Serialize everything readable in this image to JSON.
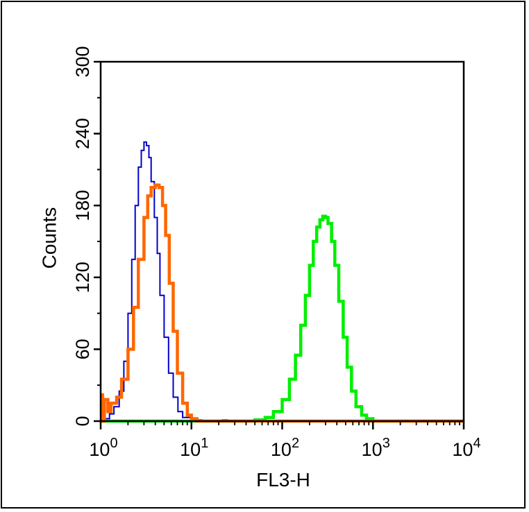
{
  "chart_data": {
    "type": "line",
    "xlabel": "FL3-H",
    "ylabel": "Counts",
    "x_scale": "log",
    "xlim": [
      1,
      10000
    ],
    "ylim": [
      0,
      300
    ],
    "x_ticks": [
      {
        "value": 1,
        "base": "10",
        "exp": "0"
      },
      {
        "value": 10,
        "base": "10",
        "exp": "1"
      },
      {
        "value": 100,
        "base": "10",
        "exp": "2"
      },
      {
        "value": 1000,
        "base": "10",
        "exp": "3"
      },
      {
        "value": 10000,
        "base": "10",
        "exp": "4"
      }
    ],
    "y_ticks": [
      "0",
      "60",
      "120",
      "180",
      "240",
      "300"
    ],
    "grid": false,
    "legend": "none",
    "series": [
      {
        "color": "#0000cc",
        "stroke": "thin",
        "x": [
          1.0,
          1.1,
          1.25,
          1.4,
          1.6,
          1.8,
          2.0,
          2.2,
          2.4,
          2.6,
          2.8,
          3.0,
          3.2,
          3.4,
          3.6,
          3.9,
          4.2,
          4.5,
          5.0,
          5.6,
          6.3,
          7.1,
          8.0,
          10.0,
          13.0,
          17.0,
          22.0,
          25.0,
          10000
        ],
        "y": [
          0,
          2,
          6,
          12,
          25,
          50,
          90,
          135,
          180,
          212,
          226,
          233,
          230,
          220,
          200,
          170,
          140,
          105,
          70,
          40,
          20,
          8,
          3,
          1,
          0,
          0,
          1,
          0,
          0
        ]
      },
      {
        "color": "#ff6600",
        "stroke": "thick",
        "x": [
          1.0,
          1.05,
          1.1,
          1.2,
          1.3,
          1.5,
          1.7,
          2.0,
          2.3,
          2.6,
          3.0,
          3.3,
          3.6,
          4.0,
          4.4,
          4.8,
          5.2,
          5.7,
          6.3,
          7.0,
          8.0,
          9.0,
          10.0,
          11.5,
          13.0,
          10000
        ],
        "y": [
          22,
          0,
          18,
          8,
          15,
          20,
          35,
          60,
          95,
          135,
          170,
          188,
          195,
          197,
          195,
          180,
          155,
          115,
          75,
          40,
          15,
          5,
          2,
          0,
          0,
          0
        ],
        "z": 2
      },
      {
        "color": "#00ee00",
        "stroke": "thick",
        "x": [
          1.0,
          20,
          35,
          50,
          65,
          80,
          100,
          120,
          140,
          160,
          180,
          200,
          220,
          240,
          260,
          280,
          300,
          320,
          350,
          380,
          420,
          470,
          520,
          580,
          650,
          750,
          850,
          1000,
          1200,
          10000
        ],
        "y": [
          0,
          0,
          0,
          1,
          3,
          8,
          18,
          35,
          55,
          80,
          105,
          130,
          150,
          162,
          168,
          171,
          170,
          165,
          150,
          130,
          100,
          70,
          45,
          25,
          12,
          5,
          2,
          0,
          0,
          0
        ]
      }
    ]
  }
}
